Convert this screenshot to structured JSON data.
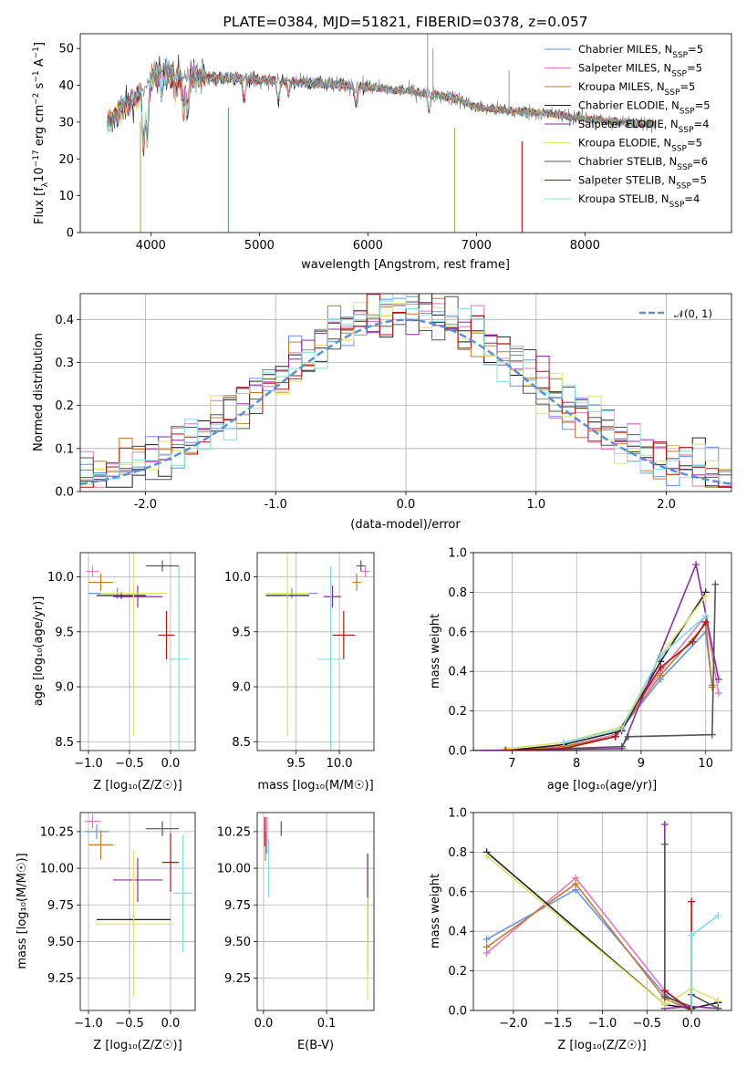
{
  "colors": [
    "#6495ed",
    "#e377c2",
    "#c27c2a",
    "#222222",
    "#8e2ca0",
    "#dfe36a",
    "#555555",
    "#b21414",
    "#7fdfe0"
  ],
  "legend_labels": [
    [
      "Chabrier MILES, N",
      "SSP",
      "=5"
    ],
    [
      "Salpeter MILES, N",
      "SSP",
      "=5"
    ],
    [
      "Kroupa MILES, N",
      "SSP",
      "=5"
    ],
    [
      "Chabrier ELODIE, N",
      "SSP",
      "=5"
    ],
    [
      "Salpeter ELODIE, N",
      "SSP",
      "=4"
    ],
    [
      "Kroupa ELODIE, N",
      "SSP",
      "=5"
    ],
    [
      "Chabrier STELIB, N",
      "SSP",
      "=6"
    ],
    [
      "Salpeter STELIB, N",
      "SSP",
      "=5"
    ],
    [
      "Kroupa STELIB, N",
      "SSP",
      "=4"
    ]
  ],
  "chart_data": [
    {
      "id": "spectrum",
      "type": "line",
      "title": "PLATE=0384, MJD=51821, FIBERID=0378, z=0.057",
      "xlabel": "wavelength [Angstrom, rest frame]",
      "ylabel": [
        "Flux [f",
        "λ",
        "10",
        "−17",
        " erg cm",
        "−2",
        " s",
        "−1",
        " A",
        "−1",
        "]"
      ],
      "xlim": [
        3350,
        9350
      ],
      "ylim": [
        0,
        54
      ],
      "xticks": [
        4000,
        5000,
        6000,
        7000,
        8000
      ],
      "yticks": [
        0,
        10,
        20,
        30,
        40,
        50
      ],
      "grid": false,
      "legend": "upper right",
      "continuum": [
        [
          3600,
          29
        ],
        [
          3700,
          33
        ],
        [
          3800,
          35
        ],
        [
          3900,
          38
        ],
        [
          4000,
          42
        ],
        [
          4100,
          44
        ],
        [
          4300,
          43
        ],
        [
          4500,
          42
        ],
        [
          4800,
          42
        ],
        [
          5000,
          41.5
        ],
        [
          5500,
          40.5
        ],
        [
          6000,
          39.5
        ],
        [
          6500,
          38
        ],
        [
          6800,
          36.5
        ],
        [
          7000,
          34
        ],
        [
          7300,
          33
        ],
        [
          7600,
          32.5
        ],
        [
          8000,
          31
        ],
        [
          8300,
          30
        ],
        [
          8600,
          29.5
        ]
      ],
      "absorption_features": [
        [
          3934,
          24
        ],
        [
          3968,
          26
        ],
        [
          4101,
          38
        ],
        [
          4226,
          38
        ],
        [
          4304,
          33
        ],
        [
          4340,
          34
        ],
        [
          4861,
          36
        ],
        [
          5175,
          36
        ],
        [
          5270,
          38
        ],
        [
          5890,
          35
        ],
        [
          6563,
          33
        ]
      ]
    },
    {
      "id": "residuals",
      "type": "histogram",
      "xlabel": "(data-model)/error",
      "ylabel": "Normed distribution",
      "xlim": [
        -2.5,
        2.5
      ],
      "ylim": [
        0,
        0.46
      ],
      "xticks": [
        -2,
        -1,
        0,
        1,
        2
      ],
      "yticks": [
        0.0,
        0.1,
        0.2,
        0.3,
        0.4
      ],
      "grid": true,
      "legend_label": "𝒩(0, 1)",
      "legend": "upper right",
      "bin_width": 0.1
    },
    {
      "id": "age_vs_Z",
      "type": "errorbar",
      "xlabel": "Z [log₁₀(Z/Z☉)]",
      "ylabel": "age  [log₁₀(age/yr)]",
      "xlim": [
        -1.1,
        0.3
      ],
      "ylim": [
        8.42,
        10.22
      ],
      "xticks": [
        -1.0,
        -0.5,
        0.0
      ],
      "yticks": [
        8.5,
        9.0,
        9.5,
        10.0
      ],
      "grid": true,
      "points": [
        {
          "x": -0.65,
          "y": 9.85,
          "xerr": 0.35,
          "yerr": 0.05
        },
        {
          "x": -0.95,
          "y": 10.05,
          "xerr": 0.08,
          "yerr": 0.05
        },
        {
          "x": -0.85,
          "y": 9.95,
          "xerr": 0.15,
          "yerr": 0.08
        },
        {
          "x": -0.6,
          "y": 9.83,
          "xerr": 0.3,
          "yerr": 0.03
        },
        {
          "x": -0.4,
          "y": 9.82,
          "xerr": 0.3,
          "yerr": 0.1
        },
        {
          "x": -0.45,
          "y": 9.85,
          "xerr": 0.4,
          "yerr": 1.3
        },
        {
          "x": -0.1,
          "y": 10.1,
          "xerr": 0.2,
          "yerr": 0.05
        },
        {
          "x": -0.05,
          "y": 9.47,
          "xerr": 0.1,
          "yerr": 0.22
        },
        {
          "x": 0.1,
          "y": 9.25,
          "xerr": 0.12,
          "yerr": 0.85
        }
      ]
    },
    {
      "id": "age_vs_mass",
      "type": "errorbar",
      "xlabel": "mass [log₁₀(M/M☉)]",
      "ylabel": "",
      "xlim": [
        9.05,
        10.4
      ],
      "ylim": [
        8.42,
        10.22
      ],
      "xticks": [
        9.5,
        10.0
      ],
      "yticks": [
        8.5,
        9.0,
        9.5,
        10.0
      ],
      "grid": true,
      "points": [
        {
          "x": 9.45,
          "y": 9.85,
          "xerr": 0.3,
          "yerr": 0.05
        },
        {
          "x": 10.3,
          "y": 10.05,
          "xerr": 0.05,
          "yerr": 0.05
        },
        {
          "x": 10.2,
          "y": 9.95,
          "xerr": 0.05,
          "yerr": 0.08
        },
        {
          "x": 9.4,
          "y": 9.83,
          "xerr": 0.25,
          "yerr": 0.03
        },
        {
          "x": 9.92,
          "y": 9.82,
          "xerr": 0.1,
          "yerr": 0.1
        },
        {
          "x": 9.4,
          "y": 9.85,
          "xerr": 0.25,
          "yerr": 1.3
        },
        {
          "x": 10.25,
          "y": 10.1,
          "xerr": 0.05,
          "yerr": 0.05
        },
        {
          "x": 10.05,
          "y": 9.47,
          "xerr": 0.13,
          "yerr": 0.22
        },
        {
          "x": 9.9,
          "y": 9.25,
          "xerr": 0.15,
          "yerr": 0.85
        }
      ]
    },
    {
      "id": "weight_vs_age",
      "type": "line",
      "xlabel": "age  [log₁₀(age/yr)]",
      "ylabel": "mass weight",
      "xlim": [
        6.4,
        10.4
      ],
      "ylim": [
        0,
        1.0
      ],
      "xticks": [
        7,
        8,
        9,
        10
      ],
      "yticks": [
        0.0,
        0.2,
        0.4,
        0.6,
        0.8,
        1.0
      ],
      "grid": true,
      "series": [
        {
          "x": [
            6.9,
            7.8,
            8.6,
            9.3,
            10.0,
            10.1
          ],
          "values": [
            0.0,
            0.02,
            0.07,
            0.36,
            0.6,
            0.33
          ]
        },
        {
          "x": [
            6.9,
            7.8,
            8.6,
            9.3,
            10.0,
            10.2
          ],
          "values": [
            0.0,
            0.02,
            0.08,
            0.4,
            0.68,
            0.29
          ]
        },
        {
          "x": [
            6.9,
            7.8,
            8.6,
            9.3,
            10.0,
            10.1
          ],
          "values": [
            0.0,
            0.02,
            0.07,
            0.38,
            0.64,
            0.32
          ]
        },
        {
          "x": [
            6.9,
            7.8,
            8.7,
            9.3,
            10.0
          ],
          "values": [
            0.0,
            0.03,
            0.1,
            0.45,
            0.8
          ]
        },
        {
          "x": [
            6.4,
            8.7,
            9.85,
            10.2
          ],
          "values": [
            0.0,
            0.01,
            0.94,
            0.36
          ]
        },
        {
          "x": [
            6.9,
            7.8,
            8.7,
            9.3,
            10.0
          ],
          "values": [
            0.01,
            0.04,
            0.12,
            0.48,
            0.78
          ]
        },
        {
          "x": [
            6.9,
            7.8,
            8.7,
            8.8,
            10.1,
            10.15
          ],
          "values": [
            0.0,
            0.01,
            0.02,
            0.07,
            0.08,
            0.84
          ]
        },
        {
          "x": [
            6.9,
            7.8,
            8.6,
            9.3,
            9.8,
            10.0
          ],
          "values": [
            0.0,
            0.01,
            0.07,
            0.42,
            0.55,
            0.65
          ]
        },
        {
          "x": [
            7.8,
            8.7,
            9.3,
            10.0
          ],
          "values": [
            0.04,
            0.11,
            0.48,
            0.68
          ]
        }
      ]
    },
    {
      "id": "mass_vs_Z",
      "type": "errorbar",
      "xlabel": "Z [log₁₀(Z/Z☉)]",
      "ylabel": "mass [log₁₀(M/M☉)]",
      "xlim": [
        -1.1,
        0.3
      ],
      "ylim": [
        9.03,
        10.38
      ],
      "xticks": [
        -1.0,
        -0.5,
        0.0
      ],
      "yticks": [
        9.25,
        9.5,
        9.75,
        10.0,
        10.25
      ],
      "grid": true,
      "points": [
        {
          "x": -0.9,
          "y": 10.25,
          "xerr": 0.15,
          "yerr": 0.05
        },
        {
          "x": -0.95,
          "y": 10.32,
          "xerr": 0.1,
          "yerr": 0.05
        },
        {
          "x": -0.85,
          "y": 10.16,
          "xerr": 0.15,
          "yerr": 0.1
        },
        {
          "x": -0.45,
          "y": 9.65,
          "xerr": 0.45,
          "yerr": 0.03
        },
        {
          "x": -0.4,
          "y": 9.92,
          "xerr": 0.3,
          "yerr": 0.15
        },
        {
          "x": -0.45,
          "y": 9.62,
          "xerr": 0.45,
          "yerr": 0.5
        },
        {
          "x": -0.1,
          "y": 10.27,
          "xerr": 0.2,
          "yerr": 0.05
        },
        {
          "x": 0.0,
          "y": 10.04,
          "xerr": 0.1,
          "yerr": 0.2
        },
        {
          "x": 0.15,
          "y": 9.83,
          "xerr": 0.12,
          "yerr": 0.4
        }
      ]
    },
    {
      "id": "mass_vs_ebv",
      "type": "errorbar",
      "xlabel": "E(B-V)",
      "ylabel": "",
      "xlim": [
        -0.01,
        0.175
      ],
      "ylim": [
        9.03,
        10.38
      ],
      "xticks": [
        0.0,
        0.1
      ],
      "yticks": [
        9.25,
        9.5,
        9.75,
        10.0,
        10.25
      ],
      "grid": true,
      "points": [
        {
          "x": 0.005,
          "y": 10.2,
          "xerr": 0.0,
          "yerr": 0.1
        },
        {
          "x": 0.005,
          "y": 10.25,
          "xerr": 0.0,
          "yerr": 0.1
        },
        {
          "x": 0.003,
          "y": 10.15,
          "xerr": 0.0,
          "yerr": 0.1
        },
        {
          "x": 0.165,
          "y": 9.7,
          "xerr": 0.0,
          "yerr": 0.4
        },
        {
          "x": 0.165,
          "y": 9.8,
          "xerr": 0.0,
          "yerr": 0.3
        },
        {
          "x": 0.165,
          "y": 9.45,
          "xerr": 0.0,
          "yerr": 0.35
        },
        {
          "x": 0.028,
          "y": 10.27,
          "xerr": 0.0,
          "yerr": 0.05
        },
        {
          "x": 0.002,
          "y": 10.25,
          "xerr": 0.0,
          "yerr": 0.1
        },
        {
          "x": 0.008,
          "y": 10.0,
          "xerr": 0.0,
          "yerr": 0.2
        }
      ]
    },
    {
      "id": "weight_vs_Z",
      "type": "line",
      "xlabel": "Z [log₁₀(Z/Z☉)]",
      "ylabel": "mass weight",
      "xlim": [
        -2.45,
        0.45
      ],
      "ylim": [
        0,
        1.0
      ],
      "xticks": [
        -2.0,
        -1.5,
        -1.0,
        -0.5,
        0.0
      ],
      "yticks": [
        0.0,
        0.2,
        0.4,
        0.6,
        0.8,
        1.0
      ],
      "grid": true,
      "series": [
        {
          "x": [
            -2.3,
            -1.3,
            -0.3,
            0.0
          ],
          "values": [
            0.36,
            0.61,
            0.08,
            0.0
          ]
        },
        {
          "x": [
            -2.3,
            -1.3,
            -0.3,
            0.0
          ],
          "values": [
            0.29,
            0.67,
            0.1,
            0.0
          ]
        },
        {
          "x": [
            -2.3,
            -1.3,
            -0.3,
            0.0
          ],
          "values": [
            0.32,
            0.64,
            0.06,
            0.0
          ]
        },
        {
          "x": [
            -2.3,
            -0.3,
            0.0,
            0.3
          ],
          "values": [
            0.8,
            0.03,
            0.01,
            0.04
          ]
        },
        {
          "x": [
            -0.3,
            -0.3,
            0.0,
            0.3
          ],
          "values": [
            0.94,
            0.01,
            0.02,
            0.01
          ]
        },
        {
          "x": [
            -2.3,
            -0.3,
            0.0,
            0.3
          ],
          "values": [
            0.78,
            0.03,
            0.11,
            0.05
          ]
        },
        {
          "x": [
            -0.3,
            -0.3,
            0.0,
            0.0,
            0.3
          ],
          "values": [
            0.84,
            0.07,
            0.02,
            0.08,
            0.01
          ]
        },
        {
          "x": [
            -0.3,
            0.0,
            0.0
          ],
          "values": [
            0.1,
            0.0,
            0.55
          ]
        },
        {
          "x": [
            0.0,
            0.0,
            0.3
          ],
          "values": [
            0.0,
            0.38,
            0.48
          ]
        }
      ]
    }
  ]
}
